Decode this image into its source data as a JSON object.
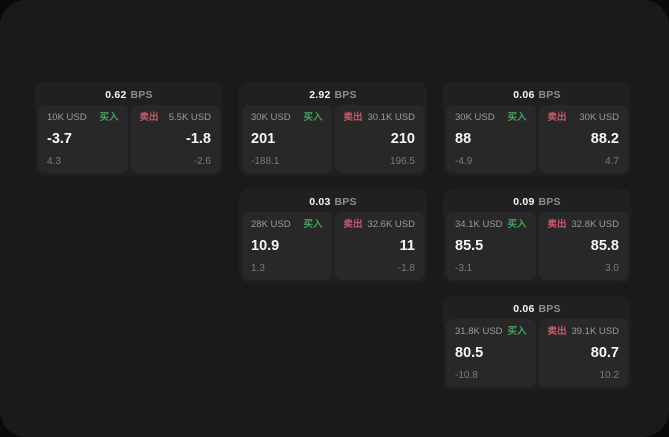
{
  "labels": {
    "bps_unit": "BPS",
    "buy": "买入",
    "sell": "卖出"
  },
  "colors": {
    "buy_green": "#46a05e",
    "sell_red": "#c9586c",
    "window_bg": "#1a1a1a",
    "card_bg": "#202020",
    "panel_bg": "#282828"
  },
  "cards": [
    {
      "col": 1,
      "row": 1,
      "bps": "0.62",
      "buy": {
        "amount": "10K USD",
        "value": "-3.7",
        "sub": "4.3"
      },
      "sell": {
        "amount": "5.5K USD",
        "value": "-1.8",
        "sub": "-2.6"
      }
    },
    {
      "col": 2,
      "row": 1,
      "bps": "2.92",
      "buy": {
        "amount": "30K USD",
        "value": "201",
        "sub": "-188.1"
      },
      "sell": {
        "amount": "30.1K USD",
        "value": "210",
        "sub": "196.5"
      }
    },
    {
      "col": 3,
      "row": 1,
      "bps": "0.06",
      "buy": {
        "amount": "30K USD",
        "value": "88",
        "sub": "-4.9"
      },
      "sell": {
        "amount": "30K USD",
        "value": "88.2",
        "sub": "4.7"
      }
    },
    {
      "col": 2,
      "row": 2,
      "bps": "0.03",
      "buy": {
        "amount": "28K USD",
        "value": "10.9",
        "sub": "1.3"
      },
      "sell": {
        "amount": "32.6K USD",
        "value": "11",
        "sub": "-1.8"
      }
    },
    {
      "col": 3,
      "row": 2,
      "bps": "0.09",
      "buy": {
        "amount": "34.1K USD",
        "value": "85.5",
        "sub": "-3.1"
      },
      "sell": {
        "amount": "32.8K USD",
        "value": "85.8",
        "sub": "3.0"
      }
    },
    {
      "col": 3,
      "row": 3,
      "bps": "0.06",
      "buy": {
        "amount": "31.8K USD",
        "value": "80.5",
        "sub": "-10.8"
      },
      "sell": {
        "amount": "39.1K USD",
        "value": "80.7",
        "sub": "10.2"
      }
    }
  ]
}
